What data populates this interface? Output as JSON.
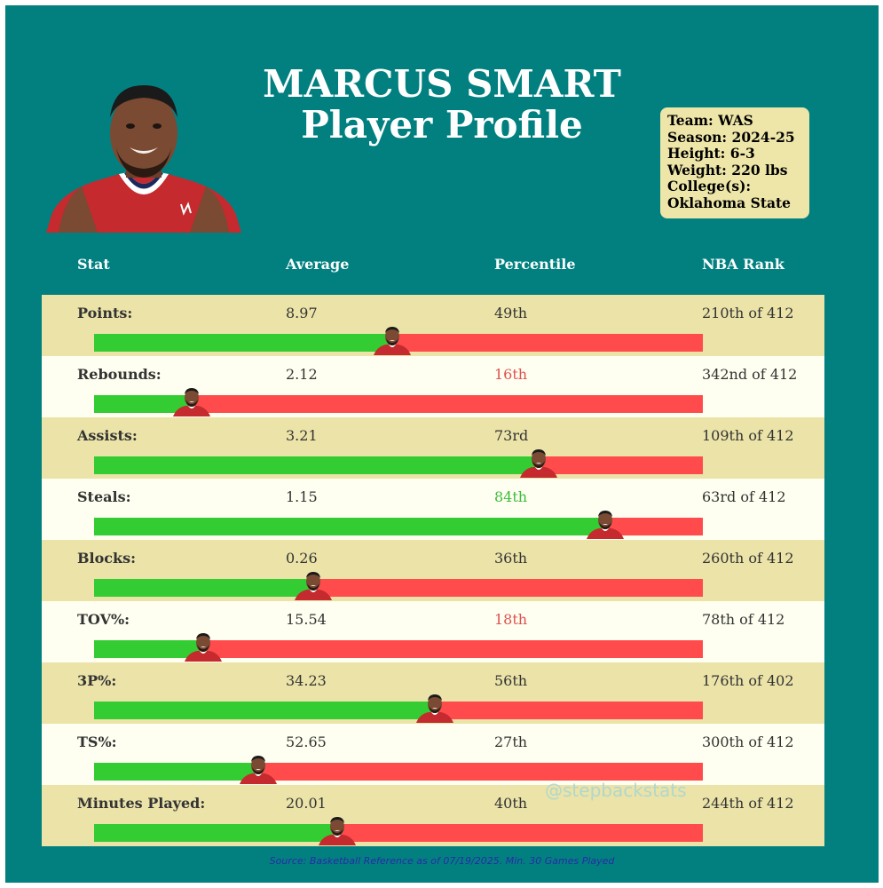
{
  "title": {
    "name": "MARCUS SMART",
    "subtitle": "Player Profile"
  },
  "info": {
    "team": "Team: WAS",
    "season": "Season: 2024-25",
    "height": "Height: 6-3",
    "weight": "Weight: 220 lbs",
    "college_label": "College(s):",
    "college": "Oklahoma State"
  },
  "headers": {
    "stat": "Stat",
    "average": "Average",
    "percentile": "Percentile",
    "rank": "NBA Rank"
  },
  "watermark": "@stepbackstats",
  "source": "Source: Basketball Reference as of 07/19/2025. Min. 30 Games Played",
  "colors": {
    "background": "#028080",
    "row_tan": "#ebe3a8",
    "row_cream": "#fefff0",
    "bar_good": "#33cc33",
    "bar_bad": "#ff4b4b",
    "pct_low": "#e05050",
    "pct_high": "#3dbb3d",
    "info_box": "#eee6a8"
  },
  "chart_data": {
    "type": "bar",
    "categories": [
      "Points:",
      "Rebounds:",
      "Assists:",
      "Steals:",
      "Blocks:",
      "TOV%:",
      "3P%:",
      "TS%:",
      "Minutes Played:"
    ],
    "averages": [
      "8.97",
      "2.12",
      "3.21",
      "1.15",
      "0.26",
      "15.54",
      "34.23",
      "52.65",
      "20.01"
    ],
    "percentiles": [
      "49th",
      "16th",
      "73rd",
      "84th",
      "36th",
      "18th",
      "56th",
      "27th",
      "40th"
    ],
    "values": [
      49,
      16,
      73,
      84,
      36,
      18,
      56,
      27,
      40
    ],
    "ranks": [
      "210th of 412",
      "342nd of 412",
      "109th of 412",
      "63rd of 412",
      "260th of 412",
      "78th of 412",
      "176th of 402",
      "300th of 412",
      "244th of 412"
    ],
    "percentile_highlight": [
      "none",
      "low",
      "none",
      "high",
      "none",
      "low",
      "none",
      "none",
      "none"
    ],
    "xlim": [
      0,
      100
    ]
  }
}
